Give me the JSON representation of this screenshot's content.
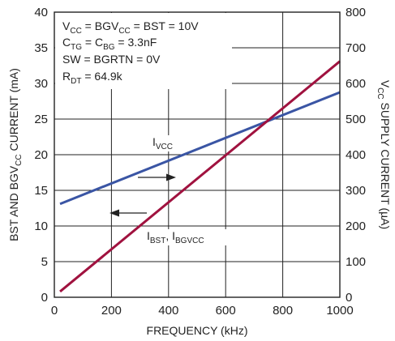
{
  "chart_data": {
    "type": "line",
    "x": [
      20,
      1000
    ],
    "xlabel": "FREQUENCY (kHz)",
    "xlim": [
      0,
      1000
    ],
    "xticks": [
      "0",
      "200",
      "400",
      "600",
      "800",
      "1000"
    ],
    "ylabel_left": {
      "main": "BST AND BGV",
      "sub": "CC",
      "tail": " CURRENT (mA)"
    },
    "ylim_left": [
      0,
      40
    ],
    "yticks_left": [
      "0",
      "5",
      "10",
      "15",
      "20",
      "25",
      "30",
      "35",
      "40"
    ],
    "ylabel_right": {
      "main": "V",
      "sub": "CC",
      "tail": " SUPPLY CURRENT (µA)"
    },
    "ylim_right": [
      0,
      800
    ],
    "yticks_right": [
      "0",
      "100",
      "200",
      "300",
      "400",
      "500",
      "600",
      "700",
      "800"
    ],
    "grid": true,
    "series": [
      {
        "axis": "right",
        "values": [
          262,
          575
        ],
        "color": "#3a55a4"
      },
      {
        "axis": "left",
        "values": [
          0.8,
          33.1
        ],
        "color": "#a0123f"
      }
    ],
    "labels": {
      "ivcc": {
        "main": "I",
        "sub": "VCC"
      },
      "ibst": {
        "p1": "I",
        "s1": "BST",
        "p2": ", I",
        "s2": "BGVCC"
      }
    },
    "conditions": [
      {
        "a": "V",
        "as": "CC",
        "b": " = BGV",
        "bs": "CC",
        "c": " = BST = 10V"
      },
      {
        "a": "C",
        "as": "TG",
        "b": " = C",
        "bs": "BG",
        "c": " = 3.3nF"
      },
      {
        "a": "SW = BGRTN = 0V",
        "as": "",
        "b": "",
        "bs": "",
        "c": ""
      },
      {
        "a": "R",
        "as": "DT",
        "b": " = 64.9k",
        "bs": "",
        "c": ""
      }
    ]
  }
}
